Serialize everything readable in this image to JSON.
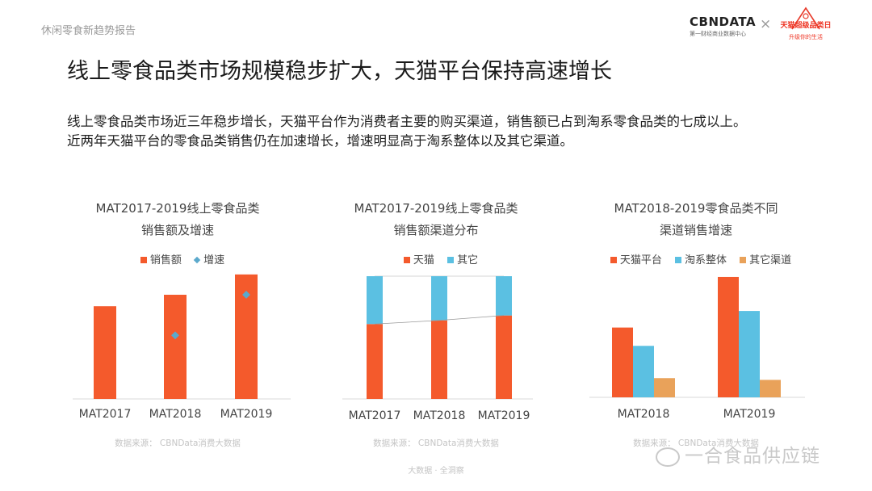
{
  "header": {
    "section_label": "休闲零食新趋势报告",
    "brand_cbn": "CBNDATA",
    "brand_cbn_sub": "第一财经商业数据中心",
    "brand_times": "×",
    "brand_tmall": "天猫超级品类日",
    "brand_tmall_sub": "升级你的生活"
  },
  "main": {
    "title": "线上零食品类市场规模稳步扩大，天猫平台保持高速增长",
    "desc_line1": "线上零食品类市场近三年稳步增长，天猫平台作为消费者主要的购买渠道，销售额已占到淘系零食品类的七成以上。",
    "desc_line2": "近两年天猫平台的零食品类销售仍在加速增长，增速明显高于淘系整体以及其它渠道。"
  },
  "colors": {
    "orange": "#f45a2c",
    "blue": "#5bc0e2",
    "tan": "#e9a25a",
    "marker": "#5ba9cc"
  },
  "chart_data": [
    {
      "type": "bar",
      "title_line1": "MAT2017-2019线上零食品类",
      "title_line2": "销售额及增速",
      "categories": [
        "MAT2017",
        "MAT2018",
        "MAT2019"
      ],
      "series": [
        {
          "name": "销售额",
          "kind": "bar",
          "values": [
            105,
            118,
            141
          ]
        },
        {
          "name": "增速",
          "kind": "marker",
          "values": [
            null,
            72,
            118
          ]
        }
      ],
      "ylim": [
        0,
        150
      ],
      "source": "数据来源： CBNData消费大数据"
    },
    {
      "type": "bar",
      "stacked": true,
      "title_line1": "MAT2017-2019线上零食品类",
      "title_line2": "销售额渠道分布",
      "categories": [
        "MAT2017",
        "MAT2018",
        "MAT2019"
      ],
      "series": [
        {
          "name": "天猫",
          "values": [
            61,
            64,
            68
          ]
        },
        {
          "name": "其它",
          "values": [
            39,
            36,
            32
          ]
        }
      ],
      "ylim": [
        0,
        100
      ],
      "source": "数据来源： CBNData消费大数据"
    },
    {
      "type": "bar",
      "title_line1": "MAT2018-2019零食品类不同",
      "title_line2": "渠道销售增速",
      "categories": [
        "MAT2018",
        "MAT2019"
      ],
      "series": [
        {
          "name": "天猫平台",
          "values": [
            80,
            138
          ]
        },
        {
          "name": "淘系整体",
          "values": [
            59,
            99
          ]
        },
        {
          "name": "其它渠道",
          "values": [
            22,
            20
          ]
        }
      ],
      "ylim": [
        0,
        150
      ],
      "source": "数据来源： CBNData消费大数据"
    }
  ],
  "footer": {
    "text": "大数据 · 全洞察",
    "watermark": "一合食品供应链"
  }
}
